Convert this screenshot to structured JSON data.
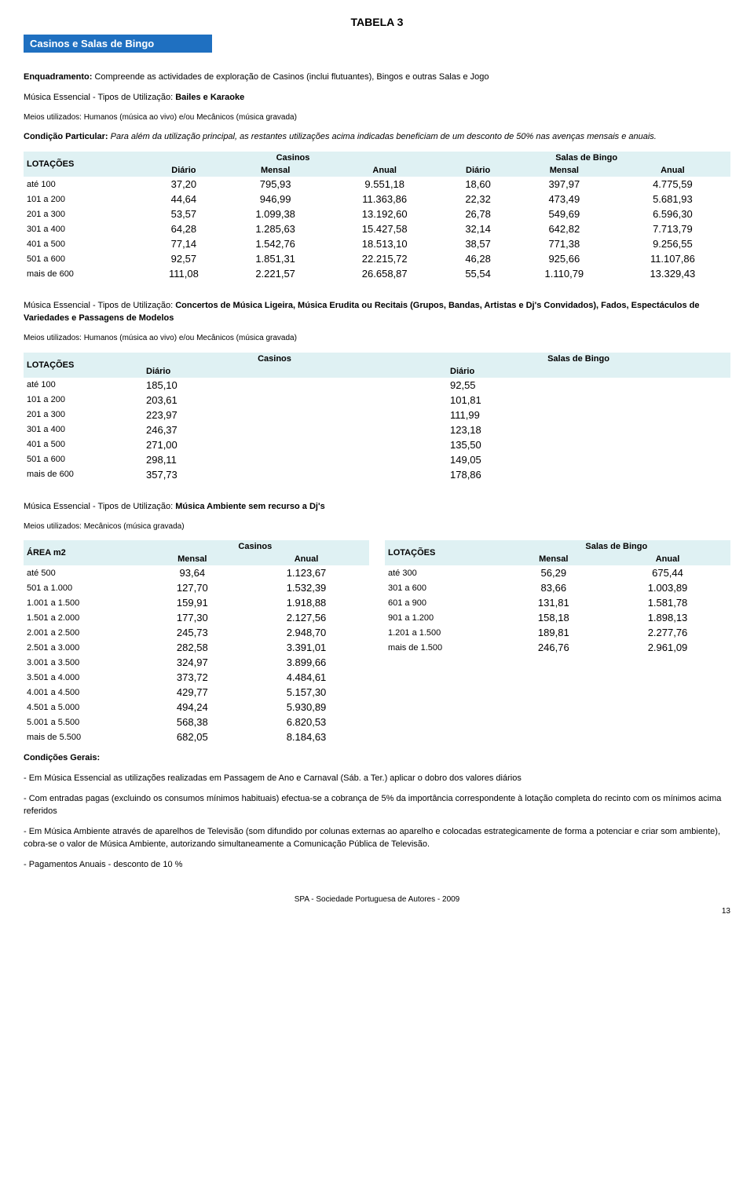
{
  "title": "TABELA 3",
  "banner": "Casinos e Salas de Bingo",
  "intro1_lead": "Enquadramento:",
  "intro1_text": " Compreende as actividades de exploração de Casinos (inclui flutuantes), Bingos e outras Salas e Jogo",
  "intro2_text": "Música Essencial - Tipos de Utilização: ",
  "intro2_bold": "Bailes e Karaoke",
  "meios1": "Meios utilizados: Humanos (música ao vivo) e/ou Mecânicos (música gravada)",
  "cond_part_lead": "Condição Particular:",
  "cond_part_text": " Para além da utilização principal, as restantes utilizações acima indicadas beneficiam de um desconto de 50% nas avenças mensais e anuais.",
  "col_lotacoes": "LOTAÇÕES",
  "col_casinos": "Casinos",
  "col_salas": "Salas de Bingo",
  "col_diario": "Diário",
  "col_mensal": "Mensal",
  "col_anual": "Anual",
  "col_area": "ÁREA m2",
  "t1": {
    "rows": [
      "até 100",
      "101 a 200",
      "201 a 300",
      "301 a 400",
      "401 a 500",
      "501 a 600",
      "mais de 600"
    ],
    "c_d": [
      "37,20",
      "44,64",
      "53,57",
      "64,28",
      "77,14",
      "92,57",
      "111,08"
    ],
    "c_m": [
      "795,93",
      "946,99",
      "1.099,38",
      "1.285,63",
      "1.542,76",
      "1.851,31",
      "2.221,57"
    ],
    "c_a": [
      "9.551,18",
      "11.363,86",
      "13.192,60",
      "15.427,58",
      "18.513,10",
      "22.215,72",
      "26.658,87"
    ],
    "s_d": [
      "18,60",
      "22,32",
      "26,78",
      "32,14",
      "38,57",
      "46,28",
      "55,54"
    ],
    "s_m": [
      "397,97",
      "473,49",
      "549,69",
      "642,82",
      "771,38",
      "925,66",
      "1.110,79"
    ],
    "s_a": [
      "4.775,59",
      "5.681,93",
      "6.596,30",
      "7.713,79",
      "9.256,55",
      "11.107,86",
      "13.329,43"
    ]
  },
  "section2_text": "Música Essencial - Tipos de Utilização: ",
  "section2_bold": "Concertos de Música Ligeira, Música Erudita ou Recitais (Grupos, Bandas, Artistas e Dj's Convidados), Fados,  Espectáculos de Variedades e Passagens de Modelos",
  "t2": {
    "rows": [
      "até 100",
      "101 a 200",
      "201 a 300",
      "301 a 400",
      "401 a 500",
      "501 a 600",
      "mais de 600"
    ],
    "c_d": [
      "185,10",
      "203,61",
      "223,97",
      "246,37",
      "271,00",
      "298,11",
      "357,73"
    ],
    "s_d": [
      "92,55",
      "101,81",
      "111,99",
      "123,18",
      "135,50",
      "149,05",
      "178,86"
    ]
  },
  "section3_text": "Música Essencial - Tipos de Utilização: ",
  "section3_bold": "Música Ambiente sem recurso a Dj's",
  "meios3": "Meios utilizados: Mecânicos (música gravada)",
  "t3a": {
    "rows": [
      "até 500",
      "501 a 1.000",
      "1.001 a 1.500",
      "1.501 a 2.000",
      "2.001 a 2.500",
      "2.501 a 3.000",
      "3.001 a 3.500",
      "3.501 a 4.000",
      "4.001 a 4.500",
      "4.501 a 5.000",
      "5.001 a 5.500",
      "mais de 5.500"
    ],
    "m": [
      "93,64",
      "127,70",
      "159,91",
      "177,30",
      "245,73",
      "282,58",
      "324,97",
      "373,72",
      "429,77",
      "494,24",
      "568,38",
      "682,05"
    ],
    "a": [
      "1.123,67",
      "1.532,39",
      "1.918,88",
      "2.127,56",
      "2.948,70",
      "3.391,01",
      "3.899,66",
      "4.484,61",
      "5.157,30",
      "5.930,89",
      "6.820,53",
      "8.184,63"
    ]
  },
  "t3b": {
    "rows": [
      "até 300",
      "301 a 600",
      "601 a 900",
      "901 a 1.200",
      "1.201 a 1.500",
      "mais de 1.500"
    ],
    "m": [
      "56,29",
      "83,66",
      "131,81",
      "158,18",
      "189,81",
      "246,76"
    ],
    "a": [
      "675,44",
      "1.003,89",
      "1.581,78",
      "1.898,13",
      "2.277,76",
      "2.961,09"
    ]
  },
  "cond_gerais": "Condições Gerais:",
  "note1": "- Em Música Essencial as utilizações realizadas em Passagem de Ano e Carnaval (Sáb. a Ter.) aplicar o dobro dos valores diários",
  "note2": "- Com entradas pagas (excluindo os consumos mínimos habituais) efectua-se a cobrança de 5% da importância correspondente à lotação completa do recinto com os mínimos acima referidos",
  "note3": "- Em Música Ambiente através de aparelhos de Televisão (som difundido por colunas externas ao aparelho e colocadas estrategicamente de forma a potenciar e criar som ambiente), cobra-se o valor de Música Ambiente, autorizando simultaneamente a Comunicação Pública de Televisão.",
  "note4": "- Pagamentos Anuais - desconto de 10 %",
  "footer": "SPA - Sociedade Portuguesa de Autores - 2009",
  "pagenum": "13"
}
